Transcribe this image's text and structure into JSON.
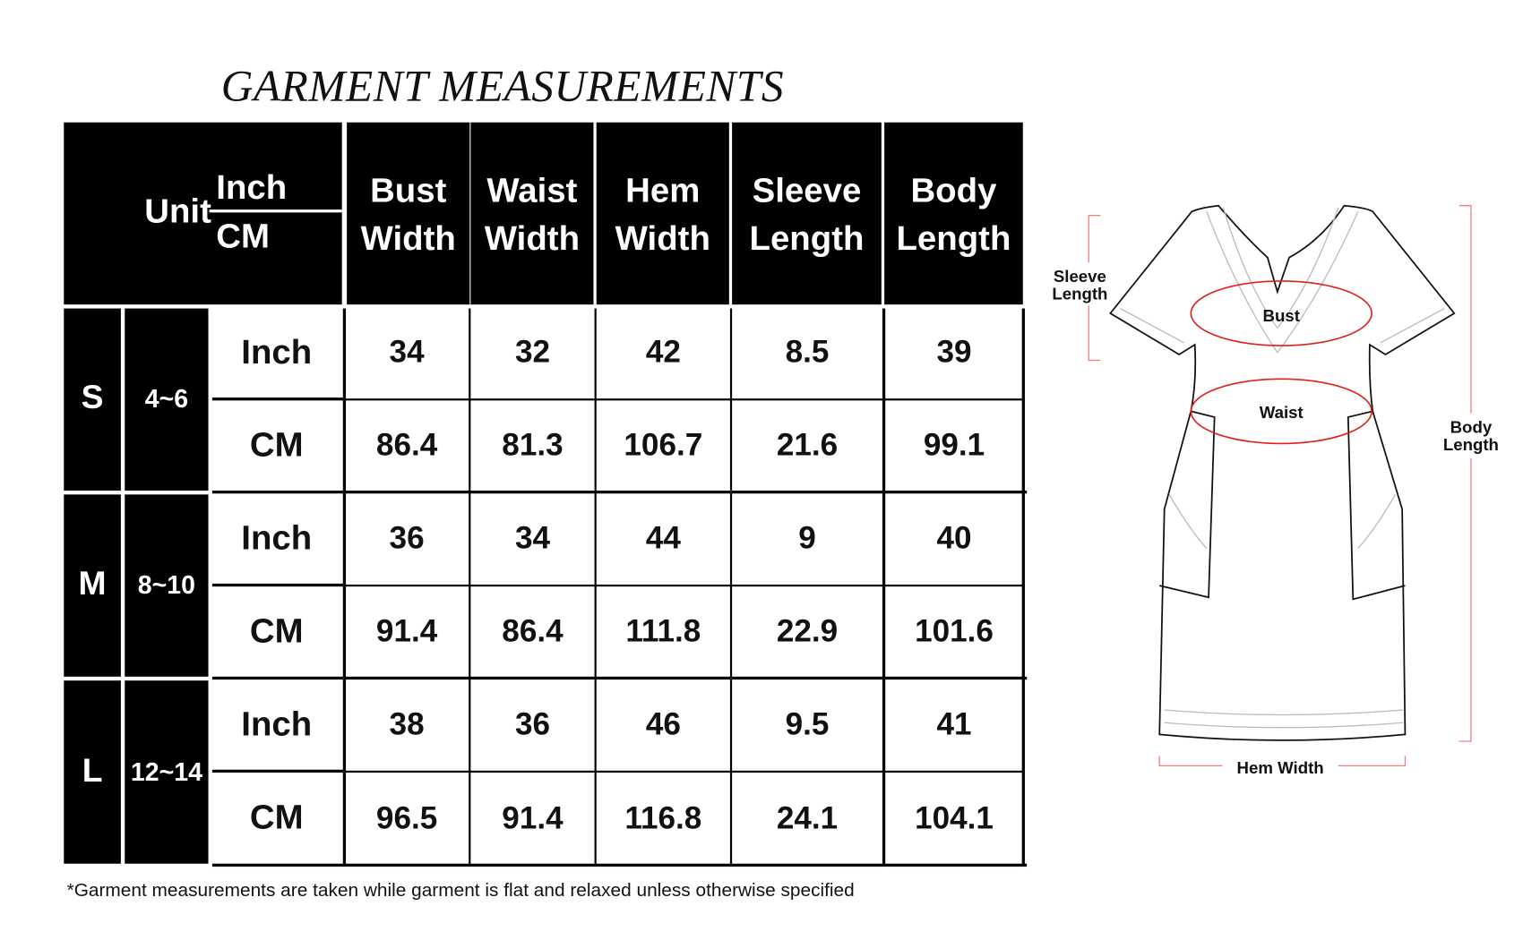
{
  "title": "GARMENT MEASUREMENTS",
  "table": {
    "header": {
      "unit_label": "Unit",
      "unit_inch": "Inch",
      "unit_cm": "CM",
      "columns": [
        {
          "line1": "Bust",
          "line2": "Width"
        },
        {
          "line1": "Waist",
          "line2": "Width"
        },
        {
          "line1": "Hem",
          "line2": "Width"
        },
        {
          "line1": "Sleeve",
          "line2": "Length"
        },
        {
          "line1": "Body",
          "line2": "Length"
        }
      ]
    },
    "rows": [
      {
        "size": "S",
        "range": "4~6",
        "inch_label": "Inch",
        "cm_label": "CM",
        "inch": [
          "34",
          "32",
          "42",
          "8.5",
          "39"
        ],
        "cm": [
          "86.4",
          "81.3",
          "106.7",
          "21.6",
          "99.1"
        ]
      },
      {
        "size": "M",
        "range": "8~10",
        "inch_label": "Inch",
        "cm_label": "CM",
        "inch": [
          "36",
          "34",
          "44",
          "9",
          "40"
        ],
        "cm": [
          "91.4",
          "86.4",
          "111.8",
          "22.9",
          "101.6"
        ]
      },
      {
        "size": "L",
        "range": "12~14",
        "inch_label": "Inch",
        "cm_label": "CM",
        "inch": [
          "38",
          "36",
          "46",
          "9.5",
          "41"
        ],
        "cm": [
          "96.5",
          "91.4",
          "116.8",
          "24.1",
          "104.1"
        ]
      }
    ]
  },
  "footnote": "*Garment measurements are taken while garment is flat and relaxed unless otherwise specified",
  "diagram": {
    "labels": {
      "sleeve_1": "Sleeve",
      "sleeve_2": "Length",
      "bust": "Bust",
      "waist": "Waist",
      "body_1": "Body",
      "body_2": "Length",
      "hem": "Hem Width"
    },
    "colors": {
      "measure_line": "#e0201c",
      "outline": "#111111"
    }
  }
}
